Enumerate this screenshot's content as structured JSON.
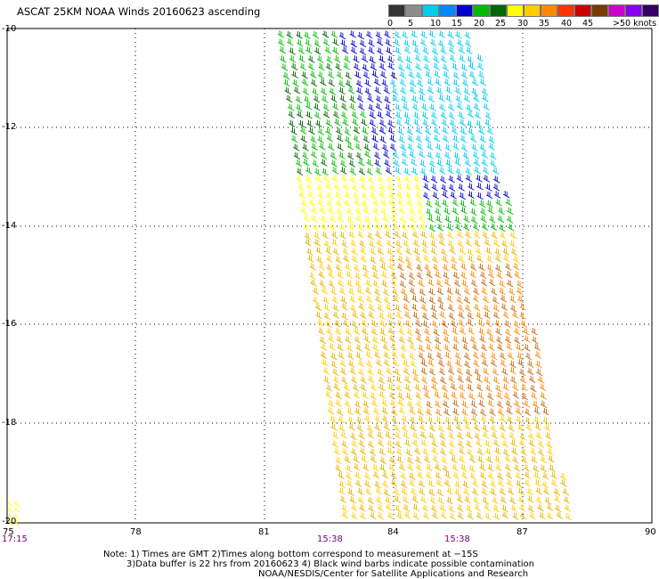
{
  "title": "ASCAT 25KM NOAA Winds 20160623 ascending",
  "colorbar": {
    "colors": [
      "#333333",
      "#8c8c8c",
      "#00ccee",
      "#0088ff",
      "#0000cc",
      "#00bb00",
      "#006600",
      "#ffff00",
      "#ffcc00",
      "#ff8800",
      "#ff3300",
      "#cc0000",
      "#7a3b00",
      "#cc00cc",
      "#8800ee",
      "#330066"
    ],
    "labels": [
      "0",
      "5",
      "10",
      "15",
      "20",
      "25",
      "30",
      "35",
      "40",
      "45",
      ">50 knots"
    ]
  },
  "axes": {
    "lat_labels": [
      "-10",
      "-12",
      "-14",
      "-16",
      "-18",
      "-20"
    ],
    "lon_labels": [
      "75",
      "78",
      "81",
      "84",
      "87",
      "90"
    ],
    "time_labels": [
      "17:15",
      "15:38",
      "15:38"
    ]
  },
  "notes": [
    "Note: 1) Times are GMT 2)Times along bottom correspond to measurement at −15S",
    "3)Data buffer is 22 hrs from 20160623 4) Black wind barbs indicate possible contamination",
    "NOAA/NESDIS/Center for Satellite Applications and Research"
  ]
}
